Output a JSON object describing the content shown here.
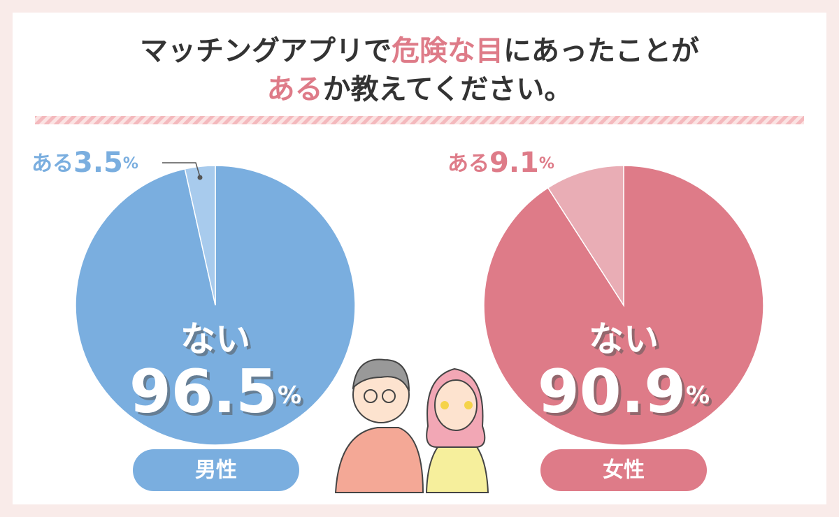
{
  "title_lines": [
    [
      {
        "text": "マッチングアプリで",
        "highlight": false
      },
      {
        "text": "危険な目",
        "highlight": true
      },
      {
        "text": "にあったことが",
        "highlight": false
      }
    ],
    [
      {
        "text": "ある",
        "highlight": true
      },
      {
        "text": "か教えてください。",
        "highlight": false
      }
    ]
  ],
  "highlight_color": "#de7b88",
  "chart_data": [
    {
      "type": "pie",
      "label": "男性",
      "categories": [
        "ない",
        "ある"
      ],
      "values": [
        96.5,
        3.5
      ],
      "unit": "%",
      "colors": [
        "#7aaedf",
        "#a8cbed"
      ]
    },
    {
      "type": "pie",
      "label": "女性",
      "categories": [
        "ない",
        "ある"
      ],
      "values": [
        90.9,
        9.1
      ],
      "unit": "%",
      "colors": [
        "#de7b88",
        "#e9adb5"
      ]
    }
  ]
}
